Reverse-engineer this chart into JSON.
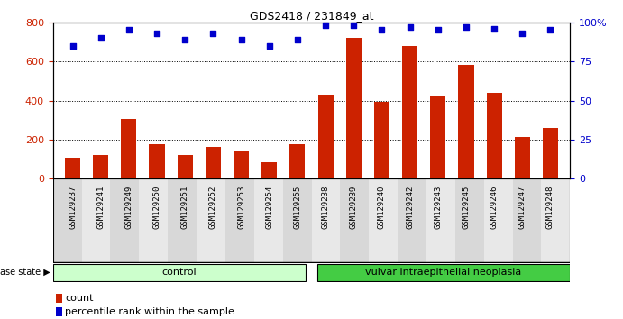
{
  "title": "GDS2418 / 231849_at",
  "samples": [
    "GSM129237",
    "GSM129241",
    "GSM129249",
    "GSM129250",
    "GSM129251",
    "GSM129252",
    "GSM129253",
    "GSM129254",
    "GSM129255",
    "GSM129238",
    "GSM129239",
    "GSM129240",
    "GSM129242",
    "GSM129243",
    "GSM129245",
    "GSM129246",
    "GSM129247",
    "GSM129248"
  ],
  "counts": [
    105,
    120,
    305,
    178,
    120,
    163,
    140,
    82,
    178,
    430,
    720,
    395,
    680,
    425,
    580,
    440,
    215,
    258
  ],
  "percentiles": [
    85,
    90,
    95,
    93,
    89,
    93,
    89,
    85,
    89,
    98,
    98,
    95,
    97,
    95,
    97,
    96,
    93,
    95
  ],
  "groups": [
    "control",
    "control",
    "control",
    "control",
    "control",
    "control",
    "control",
    "control",
    "control",
    "neoplasia",
    "neoplasia",
    "neoplasia",
    "neoplasia",
    "neoplasia",
    "neoplasia",
    "neoplasia",
    "neoplasia",
    "neoplasia"
  ],
  "bar_color": "#cc2200",
  "dot_color": "#0000cc",
  "control_color": "#ccffcc",
  "neoplasia_color": "#44cc44",
  "plot_bg": "#ffffff",
  "tick_bg_even": "#d8d8d8",
  "tick_bg_odd": "#e8e8e8",
  "ylim_left": [
    0,
    800
  ],
  "ylim_right": [
    0,
    100
  ],
  "yticks_left": [
    0,
    200,
    400,
    600,
    800
  ],
  "yticks_right": [
    0,
    25,
    50,
    75,
    100
  ],
  "legend_count": "count",
  "legend_pct": "percentile rank within the sample",
  "label_disease": "disease state",
  "label_control": "control",
  "label_neoplasia": "vulvar intraepithelial neoplasia"
}
